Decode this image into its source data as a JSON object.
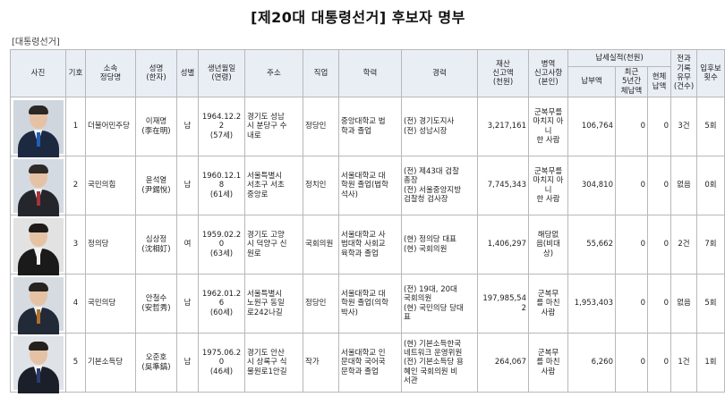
{
  "title": "[제20대 대통령선거] 후보자 명부",
  "section_label": "[대통령선거]",
  "headers": {
    "photo": "사진",
    "number": "기호",
    "party": "소속\n정당명",
    "name": "성명\n(한자)",
    "gender": "성별",
    "birth": "생년월일\n(연령)",
    "address": "주소",
    "job": "직업",
    "education": "학력",
    "career": "경력",
    "property": "재산\n신고액\n(천원)",
    "military": "병역\n신고사항\n(본인)",
    "tax_group": "납세실적(천원)",
    "tax_paid": "납부액",
    "tax_5yr": "최근\n5년간\n체납액",
    "tax_current": "현체\n납액",
    "criminal": "전과\n기록\n유무\n(건수)",
    "runs": "입후보\n횟수"
  },
  "candidates": [
    {
      "number": "1",
      "party": "더불어민주당",
      "name": "이재명\n(李在明)",
      "gender": "남",
      "birth": "1964.12.2\n2\n(57세)",
      "address": "경기도 성남\n시 분당구 수\n내로",
      "job": "정당인",
      "education": "중앙대학교 법\n학과 졸업",
      "career": "(전) 경기도지사\n(전) 성남시장",
      "property": "3,217,161",
      "military": "군복무를\n마치지 아니\n한 사람",
      "tax_paid": "106,764",
      "tax_5yr": "0",
      "tax_current": "0",
      "criminal": "3건",
      "runs": "5회",
      "photo_colors": {
        "bg": "#cfd6de",
        "suit": "#1c2940",
        "tie": "#1f5fb8",
        "hair": "#2b2725"
      }
    },
    {
      "number": "2",
      "party": "국민의힘",
      "name": "윤석열\n(尹錫悅)",
      "gender": "남",
      "birth": "1960.12.1\n8\n(61세)",
      "address": "서울특별시\n서초구 서초\n중앙로",
      "job": "정치인",
      "education": "서울대학교 대\n학원 졸업(법학\n석사)",
      "career": "(전) 제43대 검찰\n총장\n(전) 서울중앙지방\n검찰청 검사장",
      "property": "7,745,343",
      "military": "군복무를\n마치지 아니\n한 사람",
      "tax_paid": "304,810",
      "tax_5yr": "0",
      "tax_current": "0",
      "criminal": "없음",
      "runs": "0회",
      "photo_colors": {
        "bg": "#d3dae2",
        "suit": "#24262b",
        "tie": "#a8323a",
        "hair": "#2d2a28"
      }
    },
    {
      "number": "3",
      "party": "정의당",
      "name": "심상정\n(沈相奵)",
      "gender": "여",
      "birth": "1959.02.2\n0\n(63세)",
      "address": "경기도 고양\n시 덕양구 신\n원로",
      "job": "국회의원",
      "education": "서울대학교 사\n범대학 사회교\n육학과 졸업",
      "career": "(현) 정의당 대표\n(현) 국회의원",
      "property": "1,406,297",
      "military": "해당없\n음(비대\n상)",
      "tax_paid": "55,662",
      "tax_5yr": "0",
      "tax_current": "0",
      "criminal": "2건",
      "runs": "7회",
      "photo_colors": {
        "bg": "#e2e2e2",
        "suit": "#1a1a1a",
        "tie": "#f2f2f2",
        "hair": "#1e1b1a"
      }
    },
    {
      "number": "4",
      "party": "국민의당",
      "name": "안철수\n(安哲秀)",
      "gender": "남",
      "birth": "1962.01.2\n6\n(60세)",
      "address": "서울특별시\n노원구 동일\n로242나길",
      "job": "정당인",
      "education": "서울대학교 대\n학원 졸업(의학\n박사)",
      "career": "(전) 19대, 20대\n국회의원\n(현) 국민의당 당대\n표",
      "property": "197,985,54\n2",
      "military": "군복무\n를 마친\n사람",
      "tax_paid": "1,953,403",
      "tax_5yr": "0",
      "tax_current": "0",
      "criminal": "없음",
      "runs": "5회",
      "photo_colors": {
        "bg": "#d6dbe1",
        "suit": "#222a38",
        "tie": "#b0712a",
        "hair": "#272321"
      }
    },
    {
      "number": "5",
      "party": "기본소득당",
      "name": "오준호\n(吳準鎬)",
      "gender": "남",
      "birth": "1975.06.2\n0\n(46세)",
      "address": "경기도 안산\n시 상록구 식\n물원로1안길",
      "job": "작가",
      "education": "서울대학교 인\n문대학 국어국\n문학과 졸업",
      "career": "(현) 기본소득한국\n네트워크 운영위원\n(전) 기본소득당 용\n혜인 국회의원 비\n서관",
      "property": "264,067",
      "military": "군복무\n를 마친\n사람",
      "tax_paid": "6,260",
      "tax_5yr": "0",
      "tax_current": "0",
      "criminal": "1건",
      "runs": "1회",
      "photo_colors": {
        "bg": "#dfe3e8",
        "suit": "#1b1f29",
        "tie": "#2b3a70",
        "hair": "#231f1d"
      }
    }
  ]
}
